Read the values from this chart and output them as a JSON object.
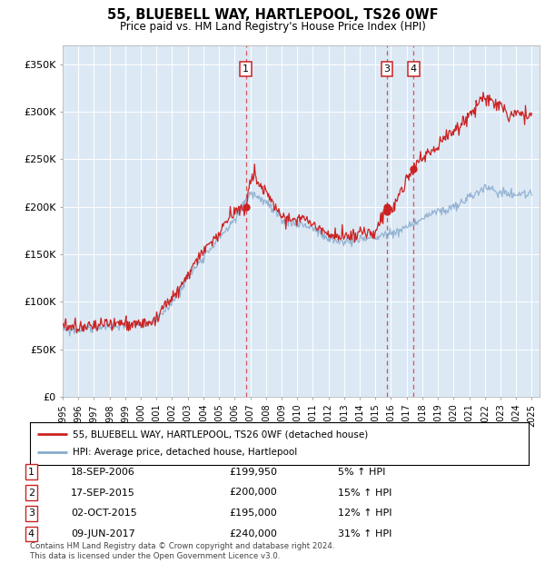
{
  "title": "55, BLUEBELL WAY, HARTLEPOOL, TS26 0WF",
  "subtitle": "Price paid vs. HM Land Registry's House Price Index (HPI)",
  "background_color": "#dce9f5",
  "red_color": "#cc2222",
  "blue_color": "#88aacc",
  "ylim": [
    0,
    370000
  ],
  "yticks": [
    0,
    50000,
    100000,
    150000,
    200000,
    250000,
    300000,
    350000
  ],
  "ytick_labels": [
    "£0",
    "£50K",
    "£100K",
    "£150K",
    "£200K",
    "£250K",
    "£300K",
    "£350K"
  ],
  "legend_label_red": "55, BLUEBELL WAY, HARTLEPOOL, TS26 0WF (detached house)",
  "legend_label_blue": "HPI: Average price, detached house, Hartlepool",
  "footer": "Contains HM Land Registry data © Crown copyright and database right 2024.\nThis data is licensed under the Open Government Licence v3.0.",
  "transactions": [
    {
      "num": "1",
      "date": "18-SEP-2006",
      "price": "£199,950",
      "pct": "5% ↑ HPI",
      "year": 2006.72,
      "price_val": 199950
    },
    {
      "num": "2",
      "date": "17-SEP-2015",
      "price": "£200,000",
      "pct": "15% ↑ HPI",
      "year": 2015.72,
      "price_val": 200000
    },
    {
      "num": "3",
      "date": "02-OCT-2015",
      "price": "£195,000",
      "pct": "12% ↑ HPI",
      "year": 2015.75,
      "price_val": 195000
    },
    {
      "num": "4",
      "date": "09-JUN-2017",
      "price": "£240,000",
      "pct": "31% ↑ HPI",
      "year": 2017.44,
      "price_val": 240000
    }
  ],
  "vlines": [
    {
      "year": 2006.72,
      "label": "1"
    },
    {
      "year": 2015.75,
      "label": "3"
    },
    {
      "year": 2017.44,
      "label": "4"
    }
  ],
  "xlim_start": 1995.0,
  "xlim_end": 2025.5,
  "figsize": [
    6.0,
    6.2
  ],
  "dpi": 100
}
